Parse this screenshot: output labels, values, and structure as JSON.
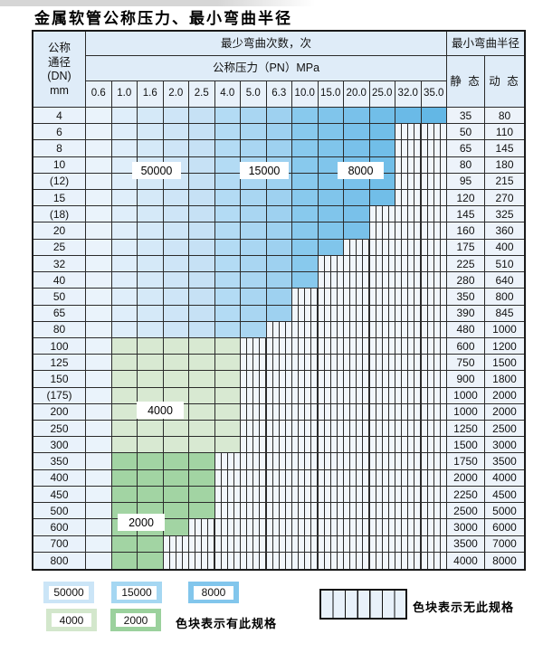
{
  "page": {
    "title": "金属软管公称压力、最小弯曲半径"
  },
  "zones": [
    {
      "label": "50000",
      "color": "#cbe5f7"
    },
    {
      "label": "15000",
      "color": "#a5d7f2"
    },
    {
      "label": "8000",
      "color": "#82c6ec"
    },
    {
      "label": "4000",
      "color": "#d3e7cc"
    },
    {
      "label": "2000",
      "color": "#9bd19d"
    }
  ],
  "colors": {
    "blue_shades": [
      "#eaf3fb",
      "#dfeefa",
      "#d5e9f8",
      "#cee5f7",
      "#c6e1f5",
      "#b3dbf4",
      "#a9d6f2",
      "#9ed1f0",
      "#88c9ed",
      "#80c5eb",
      "#79c1ea",
      "#71bee8",
      "#6abae7",
      "#63b7e5"
    ],
    "green_4000": "#d8e9d2",
    "green_2000": "#a2d4a3",
    "grid_line": "#2b2b2b"
  },
  "table": {
    "header": {
      "dn_lines": [
        "公称",
        "通径",
        "(DN)",
        "mm"
      ],
      "bend_cycles": "最少弯曲次数，次",
      "min_radius": "最小弯曲半径",
      "pressure": "公称压力（PN）MPa",
      "static": "静 态",
      "dynamic": "动 态",
      "pressure_values": [
        "0.6",
        "1.0",
        "1.6",
        "2.0",
        "2.5",
        "4.0",
        "5.0",
        "6.3",
        "10.0",
        "15.0",
        "20.0",
        "25.0",
        "32.0",
        "35.0"
      ]
    },
    "rows": [
      {
        "dn": "4",
        "fill": "blue",
        "last": 14,
        "static": "35",
        "dynamic": "80"
      },
      {
        "dn": "6",
        "fill": "blue",
        "last": 12,
        "static": "50",
        "dynamic": "110"
      },
      {
        "dn": "8",
        "fill": "blue",
        "last": 12,
        "static": "65",
        "dynamic": "145"
      },
      {
        "dn": "10",
        "fill": "blue",
        "last": 12,
        "static": "80",
        "dynamic": "180"
      },
      {
        "dn": "(12)",
        "fill": "blue",
        "last": 12,
        "static": "95",
        "dynamic": "215"
      },
      {
        "dn": "15",
        "fill": "blue",
        "last": 12,
        "static": "120",
        "dynamic": "270"
      },
      {
        "dn": "(18)",
        "fill": "blue",
        "last": 11,
        "static": "145",
        "dynamic": "325"
      },
      {
        "dn": "20",
        "fill": "blue",
        "last": 11,
        "static": "160",
        "dynamic": "360"
      },
      {
        "dn": "25",
        "fill": "blue",
        "last": 10,
        "static": "175",
        "dynamic": "400"
      },
      {
        "dn": "32",
        "fill": "blue",
        "last": 9,
        "static": "225",
        "dynamic": "510"
      },
      {
        "dn": "40",
        "fill": "blue",
        "last": 9,
        "static": "280",
        "dynamic": "640"
      },
      {
        "dn": "50",
        "fill": "blue",
        "last": 8,
        "static": "350",
        "dynamic": "800"
      },
      {
        "dn": "65",
        "fill": "blue",
        "last": 8,
        "static": "390",
        "dynamic": "845"
      },
      {
        "dn": "80",
        "fill": "blue",
        "last": 7,
        "static": "480",
        "dynamic": "1000"
      },
      {
        "dn": "100",
        "fill": "green4",
        "last": 6,
        "static": "600",
        "dynamic": "1200"
      },
      {
        "dn": "125",
        "fill": "green4",
        "last": 6,
        "static": "750",
        "dynamic": "1500"
      },
      {
        "dn": "150",
        "fill": "green4",
        "last": 6,
        "static": "900",
        "dynamic": "1800"
      },
      {
        "dn": "(175)",
        "fill": "green4",
        "last": 6,
        "static": "1000",
        "dynamic": "2000"
      },
      {
        "dn": "200",
        "fill": "green4",
        "last": 6,
        "static": "1000",
        "dynamic": "2000"
      },
      {
        "dn": "250",
        "fill": "green4",
        "last": 6,
        "static": "1250",
        "dynamic": "2500"
      },
      {
        "dn": "300",
        "fill": "green4",
        "last": 6,
        "static": "1500",
        "dynamic": "3000"
      },
      {
        "dn": "350",
        "fill": "green2",
        "last": 5,
        "static": "1750",
        "dynamic": "3500"
      },
      {
        "dn": "400",
        "fill": "green2",
        "last": 5,
        "static": "2000",
        "dynamic": "4000"
      },
      {
        "dn": "450",
        "fill": "green2",
        "last": 5,
        "static": "2250",
        "dynamic": "4500"
      },
      {
        "dn": "500",
        "fill": "green2",
        "last": 5,
        "static": "2500",
        "dynamic": "5000"
      },
      {
        "dn": "600",
        "fill": "green2",
        "last": 4,
        "static": "3000",
        "dynamic": "6000"
      },
      {
        "dn": "700",
        "fill": "green2",
        "last": 3,
        "static": "3500",
        "dynamic": "7000"
      },
      {
        "dn": "800",
        "fill": "green2",
        "last": 3,
        "static": "4000",
        "dynamic": "8000"
      }
    ]
  },
  "legend": {
    "has_spec_text": "色块表示有此规格",
    "no_spec_text": "色块表示无此规格"
  }
}
